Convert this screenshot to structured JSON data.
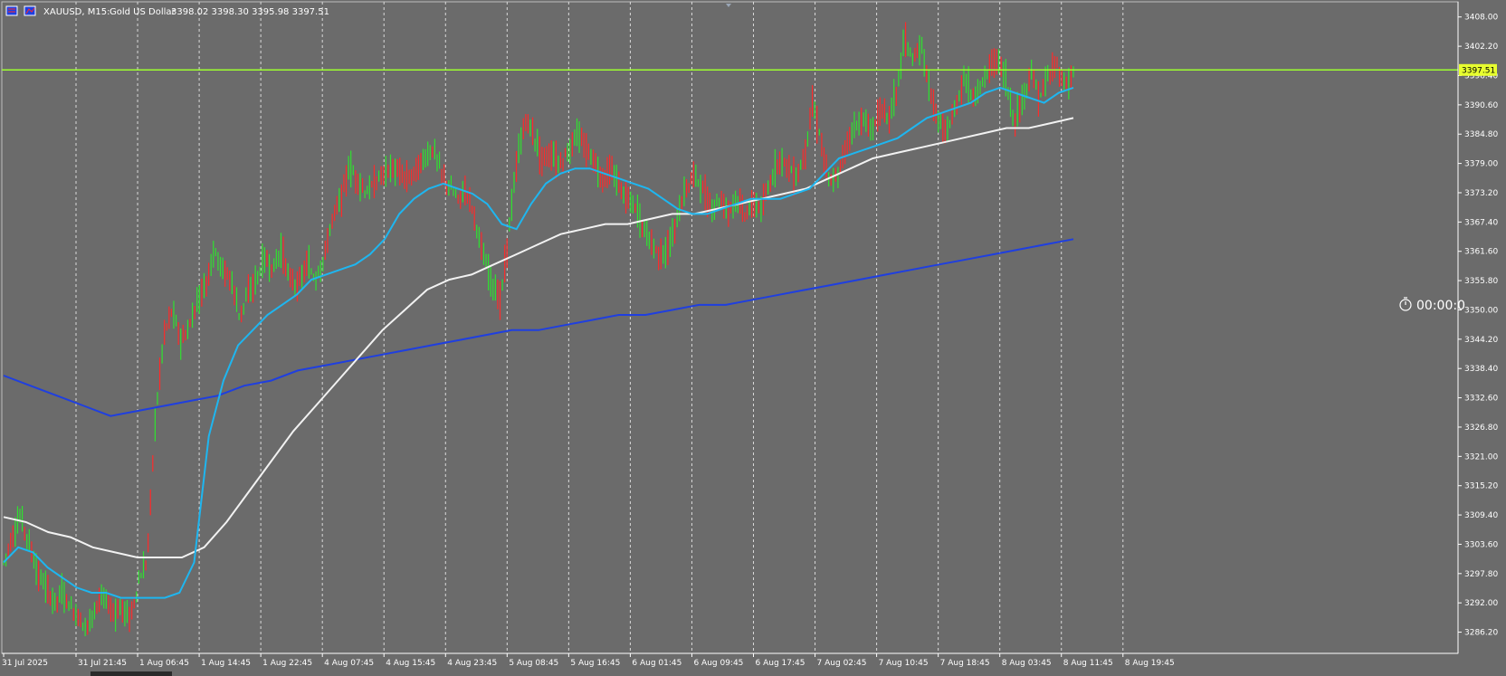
{
  "header": {
    "symbol_timeframe": "XAUUSD, M15:",
    "description": "Gold US Dollar",
    "ohlc": "3398.02 3398.30 3395.98 3397.51"
  },
  "current_price_label": "3397.51",
  "timer_label": "00:00:0",
  "colors": {
    "background": "#6b6b6b",
    "bull_candle": "#2fe22f",
    "bear_candle": "#ff2a2a",
    "ma_fast": "#1eb6f0",
    "ma_mid": "#f2f2f2",
    "ma_slow": "#1f3fe0",
    "price_line": "#9dff2f",
    "price_tag_bg": "#e8ff2f",
    "grid": "#d9d9d9",
    "axis": "#ffffff"
  },
  "chart_data": {
    "type": "candlestick",
    "ylim": [
      3282,
      3411
    ],
    "grid_vertical": true,
    "y_ticks": [
      "3408.00",
      "3402.20",
      "3396.40",
      "3390.60",
      "3384.80",
      "3379.00",
      "3373.20",
      "3367.40",
      "3361.60",
      "3355.80",
      "3350.00",
      "3344.20",
      "3338.40",
      "3332.60",
      "3326.80",
      "3321.00",
      "3315.20",
      "3309.40",
      "3303.60",
      "3297.80",
      "3292.00",
      "3286.20"
    ],
    "x_ticks": [
      "31 Jul 2025",
      "31 Jul 21:45",
      "1 Aug 06:45",
      "1 Aug 14:45",
      "1 Aug 22:45",
      "4 Aug 07:45",
      "4 Aug 15:45",
      "4 Aug 23:45",
      "5 Aug 08:45",
      "5 Aug 16:45",
      "6 Aug 01:45",
      "6 Aug 09:45",
      "6 Aug 17:45",
      "7 Aug 02:45",
      "7 Aug 10:45",
      "7 Aug 18:45",
      "8 Aug 03:45",
      "8 Aug 11:45",
      "8 Aug 19:45"
    ],
    "current_price": 3397.51,
    "series": [
      {
        "name": "",
        "kind": "close_path",
        "values": [
          3300,
          3305,
          3309,
          3304,
          3298,
          3295,
          3292,
          3294,
          3291,
          3289,
          3287,
          3292,
          3293,
          3290,
          3291,
          3289,
          3296,
          3300,
          3328,
          3345,
          3350,
          3344,
          3346,
          3352,
          3355,
          3362,
          3358,
          3356,
          3349,
          3353,
          3356,
          3360,
          3358,
          3362,
          3356,
          3355,
          3359,
          3356,
          3360,
          3368,
          3372,
          3378,
          3376,
          3373,
          3375,
          3377,
          3378,
          3377,
          3376,
          3378,
          3380,
          3382,
          3377,
          3374,
          3372,
          3374,
          3368,
          3360,
          3355,
          3352,
          3366,
          3380,
          3388,
          3384,
          3380,
          3381,
          3379,
          3381,
          3385,
          3382,
          3380,
          3376,
          3378,
          3375,
          3372,
          3370,
          3366,
          3363,
          3361,
          3362,
          3368,
          3374,
          3377,
          3374,
          3370,
          3372,
          3370,
          3372,
          3369,
          3371,
          3370,
          3375,
          3380,
          3379,
          3376,
          3380,
          3391,
          3384,
          3375,
          3376,
          3383,
          3386,
          3388,
          3385,
          3390,
          3388,
          3393,
          3404,
          3399,
          3402,
          3393,
          3387,
          3385,
          3390,
          3396,
          3392,
          3394,
          3398,
          3400,
          3395,
          3387,
          3392,
          3397,
          3392,
          3396,
          3399,
          3394,
          3397
        ]
      },
      {
        "name": "",
        "kind": "moving_average_fast",
        "values": [
          3300,
          3303,
          3302,
          3299,
          3297,
          3295,
          3294,
          3294,
          3293,
          3293,
          3293,
          3293,
          3294,
          3300,
          3325,
          3336,
          3343,
          3346,
          3349,
          3351,
          3353,
          3356,
          3357,
          3358,
          3359,
          3361,
          3364,
          3369,
          3372,
          3374,
          3375,
          3374,
          3373,
          3371,
          3367,
          3366,
          3371,
          3375,
          3377,
          3378,
          3378,
          3377,
          3376,
          3375,
          3374,
          3372,
          3370,
          3369,
          3369,
          3370,
          3371,
          3372,
          3372,
          3372,
          3373,
          3374,
          3377,
          3380,
          3381,
          3382,
          3383,
          3384,
          3386,
          3388,
          3389,
          3390,
          3391,
          3393,
          3394,
          3393,
          3392,
          3391,
          3393,
          3394
        ]
      },
      {
        "name": "",
        "kind": "moving_average_mid",
        "values": [
          3309,
          3308,
          3306,
          3305,
          3303,
          3302,
          3301,
          3301,
          3301,
          3303,
          3308,
          3314,
          3320,
          3326,
          3331,
          3336,
          3341,
          3346,
          3350,
          3354,
          3356,
          3357,
          3359,
          3361,
          3363,
          3365,
          3366,
          3367,
          3367,
          3368,
          3369,
          3369,
          3370,
          3371,
          3372,
          3373,
          3374,
          3376,
          3378,
          3380,
          3381,
          3382,
          3383,
          3384,
          3385,
          3386,
          3386,
          3387,
          3388
        ]
      },
      {
        "name": "",
        "kind": "moving_average_slow",
        "values": [
          3337,
          3335,
          3333,
          3331,
          3329,
          3330,
          3331,
          3332,
          3333,
          3335,
          3336,
          3338,
          3339,
          3340,
          3341,
          3342,
          3343,
          3344,
          3345,
          3346,
          3346,
          3347,
          3348,
          3349,
          3349,
          3350,
          3351,
          3351,
          3352,
          3353,
          3354,
          3355,
          3356,
          3357,
          3358,
          3359,
          3360,
          3361,
          3362,
          3363,
          3364
        ]
      }
    ]
  }
}
